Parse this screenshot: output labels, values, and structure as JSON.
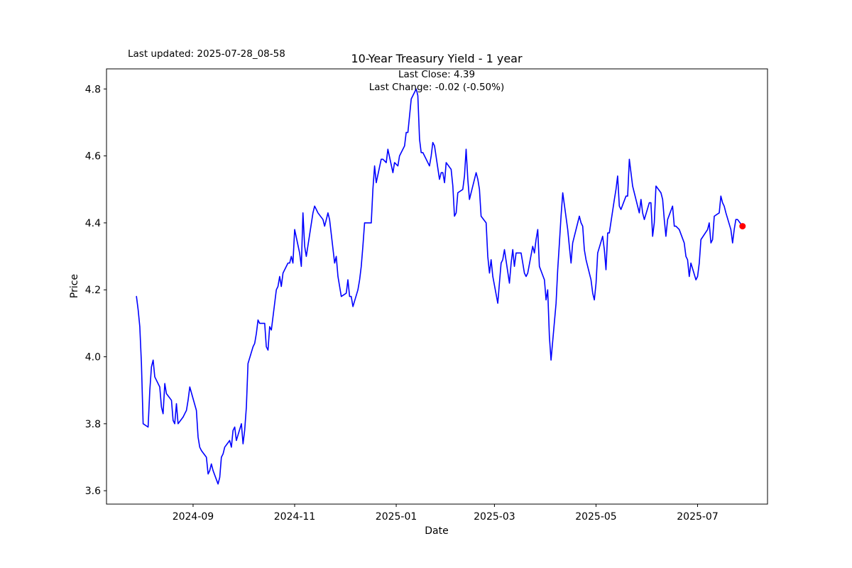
{
  "header": {
    "last_updated": "Last updated: 2025-07-28_08-58",
    "title": "10-Year Treasury Yield - 1 year",
    "subtitle_line1": "Last Close: 4.39",
    "subtitle_line2": "Last Change: -0.02 (-0.50%)"
  },
  "chart_data": {
    "type": "line",
    "title": "10-Year Treasury Yield - 1 year",
    "xlabel": "Date",
    "ylabel": "Price",
    "grid": false,
    "legend": false,
    "last_close": 4.39,
    "last_change_abs": -0.02,
    "last_change_pct": "-0.50%",
    "line_color": "#0000ff",
    "marker_color": "#ff0000",
    "ylim": [
      3.56,
      4.86
    ],
    "xlim": [
      "2024-07-11",
      "2025-08-12"
    ],
    "yticks": [
      {
        "v": 3.6,
        "label": "3.6"
      },
      {
        "v": 3.8,
        "label": "3.8"
      },
      {
        "v": 4.0,
        "label": "4.0"
      },
      {
        "v": 4.2,
        "label": "4.2"
      },
      {
        "v": 4.4,
        "label": "4.4"
      },
      {
        "v": 4.6,
        "label": "4.6"
      },
      {
        "v": 4.8,
        "label": "4.8"
      }
    ],
    "xticks": [
      {
        "date": "2024-09-01",
        "label": "2024-09"
      },
      {
        "date": "2024-11-01",
        "label": "2024-11"
      },
      {
        "date": "2025-01-01",
        "label": "2025-01"
      },
      {
        "date": "2025-03-01",
        "label": "2025-03"
      },
      {
        "date": "2025-05-01",
        "label": "2025-05"
      },
      {
        "date": "2025-07-01",
        "label": "2025-07"
      }
    ],
    "series": [
      {
        "name": "10-Year Treasury Yield",
        "points": [
          [
            "2024-07-29",
            4.18
          ],
          [
            "2024-07-30",
            4.14
          ],
          [
            "2024-07-31",
            4.09
          ],
          [
            "2024-08-01",
            3.98
          ],
          [
            "2024-08-02",
            3.8
          ],
          [
            "2024-08-05",
            3.79
          ],
          [
            "2024-08-06",
            3.9
          ],
          [
            "2024-08-07",
            3.97
          ],
          [
            "2024-08-08",
            3.99
          ],
          [
            "2024-08-09",
            3.94
          ],
          [
            "2024-08-12",
            3.91
          ],
          [
            "2024-08-13",
            3.85
          ],
          [
            "2024-08-14",
            3.83
          ],
          [
            "2024-08-15",
            3.92
          ],
          [
            "2024-08-16",
            3.89
          ],
          [
            "2024-08-19",
            3.87
          ],
          [
            "2024-08-20",
            3.81
          ],
          [
            "2024-08-21",
            3.8
          ],
          [
            "2024-08-22",
            3.86
          ],
          [
            "2024-08-23",
            3.8
          ],
          [
            "2024-08-26",
            3.82
          ],
          [
            "2024-08-27",
            3.83
          ],
          [
            "2024-08-28",
            3.84
          ],
          [
            "2024-08-29",
            3.87
          ],
          [
            "2024-08-30",
            3.91
          ],
          [
            "2024-09-03",
            3.84
          ],
          [
            "2024-09-04",
            3.76
          ],
          [
            "2024-09-05",
            3.73
          ],
          [
            "2024-09-06",
            3.72
          ],
          [
            "2024-09-09",
            3.7
          ],
          [
            "2024-09-10",
            3.65
          ],
          [
            "2024-09-11",
            3.66
          ],
          [
            "2024-09-12",
            3.68
          ],
          [
            "2024-09-13",
            3.66
          ],
          [
            "2024-09-16",
            3.62
          ],
          [
            "2024-09-17",
            3.64
          ],
          [
            "2024-09-18",
            3.7
          ],
          [
            "2024-09-19",
            3.71
          ],
          [
            "2024-09-20",
            3.73
          ],
          [
            "2024-09-23",
            3.75
          ],
          [
            "2024-09-24",
            3.73
          ],
          [
            "2024-09-25",
            3.78
          ],
          [
            "2024-09-26",
            3.79
          ],
          [
            "2024-09-27",
            3.75
          ],
          [
            "2024-09-30",
            3.8
          ],
          [
            "2024-10-01",
            3.74
          ],
          [
            "2024-10-02",
            3.78
          ],
          [
            "2024-10-03",
            3.85
          ],
          [
            "2024-10-04",
            3.98
          ],
          [
            "2024-10-07",
            4.03
          ],
          [
            "2024-10-08",
            4.04
          ],
          [
            "2024-10-09",
            4.07
          ],
          [
            "2024-10-10",
            4.11
          ],
          [
            "2024-10-11",
            4.1
          ],
          [
            "2024-10-14",
            4.1
          ],
          [
            "2024-10-15",
            4.03
          ],
          [
            "2024-10-16",
            4.02
          ],
          [
            "2024-10-17",
            4.09
          ],
          [
            "2024-10-18",
            4.08
          ],
          [
            "2024-10-21",
            4.2
          ],
          [
            "2024-10-22",
            4.21
          ],
          [
            "2024-10-23",
            4.24
          ],
          [
            "2024-10-24",
            4.21
          ],
          [
            "2024-10-25",
            4.25
          ],
          [
            "2024-10-28",
            4.28
          ],
          [
            "2024-10-29",
            4.28
          ],
          [
            "2024-10-30",
            4.3
          ],
          [
            "2024-10-31",
            4.28
          ],
          [
            "2024-11-01",
            4.38
          ],
          [
            "2024-11-04",
            4.31
          ],
          [
            "2024-11-05",
            4.27
          ],
          [
            "2024-11-06",
            4.43
          ],
          [
            "2024-11-07",
            4.33
          ],
          [
            "2024-11-08",
            4.3
          ],
          [
            "2024-11-12",
            4.43
          ],
          [
            "2024-11-13",
            4.45
          ],
          [
            "2024-11-14",
            4.44
          ],
          [
            "2024-11-15",
            4.43
          ],
          [
            "2024-11-18",
            4.41
          ],
          [
            "2024-11-19",
            4.39
          ],
          [
            "2024-11-20",
            4.41
          ],
          [
            "2024-11-21",
            4.43
          ],
          [
            "2024-11-22",
            4.41
          ],
          [
            "2024-11-25",
            4.28
          ],
          [
            "2024-11-26",
            4.3
          ],
          [
            "2024-11-27",
            4.24
          ],
          [
            "2024-11-29",
            4.18
          ],
          [
            "2024-12-02",
            4.19
          ],
          [
            "2024-12-03",
            4.23
          ],
          [
            "2024-12-04",
            4.18
          ],
          [
            "2024-12-05",
            4.18
          ],
          [
            "2024-12-06",
            4.15
          ],
          [
            "2024-12-09",
            4.2
          ],
          [
            "2024-12-10",
            4.23
          ],
          [
            "2024-12-11",
            4.27
          ],
          [
            "2024-12-12",
            4.33
          ],
          [
            "2024-12-13",
            4.4
          ],
          [
            "2024-12-16",
            4.4
          ],
          [
            "2024-12-17",
            4.4
          ],
          [
            "2024-12-18",
            4.5
          ],
          [
            "2024-12-19",
            4.57
          ],
          [
            "2024-12-20",
            4.52
          ],
          [
            "2024-12-23",
            4.59
          ],
          [
            "2024-12-24",
            4.59
          ],
          [
            "2024-12-26",
            4.58
          ],
          [
            "2024-12-27",
            4.62
          ],
          [
            "2024-12-30",
            4.55
          ],
          [
            "2024-12-31",
            4.58
          ],
          [
            "2025-01-02",
            4.57
          ],
          [
            "2025-01-03",
            4.6
          ],
          [
            "2025-01-06",
            4.63
          ],
          [
            "2025-01-07",
            4.67
          ],
          [
            "2025-01-08",
            4.67
          ],
          [
            "2025-01-10",
            4.77
          ],
          [
            "2025-01-13",
            4.8
          ],
          [
            "2025-01-14",
            4.78
          ],
          [
            "2025-01-15",
            4.65
          ],
          [
            "2025-01-16",
            4.61
          ],
          [
            "2025-01-17",
            4.61
          ],
          [
            "2025-01-21",
            4.57
          ],
          [
            "2025-01-22",
            4.6
          ],
          [
            "2025-01-23",
            4.64
          ],
          [
            "2025-01-24",
            4.63
          ],
          [
            "2025-01-27",
            4.53
          ],
          [
            "2025-01-28",
            4.55
          ],
          [
            "2025-01-29",
            4.55
          ],
          [
            "2025-01-30",
            4.52
          ],
          [
            "2025-01-31",
            4.58
          ],
          [
            "2025-02-03",
            4.56
          ],
          [
            "2025-02-04",
            4.51
          ],
          [
            "2025-02-05",
            4.42
          ],
          [
            "2025-02-06",
            4.43
          ],
          [
            "2025-02-07",
            4.49
          ],
          [
            "2025-02-10",
            4.5
          ],
          [
            "2025-02-11",
            4.54
          ],
          [
            "2025-02-12",
            4.62
          ],
          [
            "2025-02-13",
            4.53
          ],
          [
            "2025-02-14",
            4.47
          ],
          [
            "2025-02-18",
            4.55
          ],
          [
            "2025-02-19",
            4.53
          ],
          [
            "2025-02-20",
            4.5
          ],
          [
            "2025-02-21",
            4.42
          ],
          [
            "2025-02-24",
            4.4
          ],
          [
            "2025-02-25",
            4.3
          ],
          [
            "2025-02-26",
            4.25
          ],
          [
            "2025-02-27",
            4.29
          ],
          [
            "2025-02-28",
            4.24
          ],
          [
            "2025-03-03",
            4.16
          ],
          [
            "2025-03-04",
            4.22
          ],
          [
            "2025-03-05",
            4.28
          ],
          [
            "2025-03-06",
            4.29
          ],
          [
            "2025-03-07",
            4.32
          ],
          [
            "2025-03-10",
            4.22
          ],
          [
            "2025-03-11",
            4.28
          ],
          [
            "2025-03-12",
            4.32
          ],
          [
            "2025-03-13",
            4.27
          ],
          [
            "2025-03-14",
            4.31
          ],
          [
            "2025-03-17",
            4.31
          ],
          [
            "2025-03-18",
            4.28
          ],
          [
            "2025-03-19",
            4.25
          ],
          [
            "2025-03-20",
            4.24
          ],
          [
            "2025-03-21",
            4.25
          ],
          [
            "2025-03-24",
            4.33
          ],
          [
            "2025-03-25",
            4.31
          ],
          [
            "2025-03-26",
            4.35
          ],
          [
            "2025-03-27",
            4.38
          ],
          [
            "2025-03-28",
            4.27
          ],
          [
            "2025-03-31",
            4.23
          ],
          [
            "2025-04-01",
            4.17
          ],
          [
            "2025-04-02",
            4.2
          ],
          [
            "2025-04-03",
            4.06
          ],
          [
            "2025-04-04",
            3.99
          ],
          [
            "2025-04-07",
            4.16
          ],
          [
            "2025-04-08",
            4.26
          ],
          [
            "2025-04-09",
            4.34
          ],
          [
            "2025-04-10",
            4.42
          ],
          [
            "2025-04-11",
            4.49
          ],
          [
            "2025-04-14",
            4.38
          ],
          [
            "2025-04-15",
            4.33
          ],
          [
            "2025-04-16",
            4.28
          ],
          [
            "2025-04-17",
            4.34
          ],
          [
            "2025-04-21",
            4.42
          ],
          [
            "2025-04-22",
            4.4
          ],
          [
            "2025-04-23",
            4.39
          ],
          [
            "2025-04-24",
            4.32
          ],
          [
            "2025-04-25",
            4.29
          ],
          [
            "2025-04-28",
            4.23
          ],
          [
            "2025-04-29",
            4.19
          ],
          [
            "2025-04-30",
            4.17
          ],
          [
            "2025-05-01",
            4.22
          ],
          [
            "2025-05-02",
            4.31
          ],
          [
            "2025-05-05",
            4.36
          ],
          [
            "2025-05-06",
            4.32
          ],
          [
            "2025-05-07",
            4.26
          ],
          [
            "2025-05-08",
            4.37
          ],
          [
            "2025-05-09",
            4.37
          ],
          [
            "2025-05-12",
            4.47
          ],
          [
            "2025-05-13",
            4.5
          ],
          [
            "2025-05-14",
            4.54
          ],
          [
            "2025-05-15",
            4.45
          ],
          [
            "2025-05-16",
            4.44
          ],
          [
            "2025-05-19",
            4.48
          ],
          [
            "2025-05-20",
            4.48
          ],
          [
            "2025-05-21",
            4.59
          ],
          [
            "2025-05-22",
            4.55
          ],
          [
            "2025-05-23",
            4.51
          ],
          [
            "2025-05-27",
            4.43
          ],
          [
            "2025-05-28",
            4.47
          ],
          [
            "2025-05-29",
            4.43
          ],
          [
            "2025-05-30",
            4.41
          ],
          [
            "2025-06-02",
            4.46
          ],
          [
            "2025-06-03",
            4.46
          ],
          [
            "2025-06-04",
            4.36
          ],
          [
            "2025-06-05",
            4.4
          ],
          [
            "2025-06-06",
            4.51
          ],
          [
            "2025-06-09",
            4.49
          ],
          [
            "2025-06-10",
            4.47
          ],
          [
            "2025-06-11",
            4.41
          ],
          [
            "2025-06-12",
            4.36
          ],
          [
            "2025-06-13",
            4.41
          ],
          [
            "2025-06-16",
            4.45
          ],
          [
            "2025-06-17",
            4.39
          ],
          [
            "2025-06-18",
            4.39
          ],
          [
            "2025-06-20",
            4.38
          ],
          [
            "2025-06-23",
            4.34
          ],
          [
            "2025-06-24",
            4.3
          ],
          [
            "2025-06-25",
            4.29
          ],
          [
            "2025-06-26",
            4.24
          ],
          [
            "2025-06-27",
            4.28
          ],
          [
            "2025-06-30",
            4.23
          ],
          [
            "2025-07-01",
            4.24
          ],
          [
            "2025-07-02",
            4.28
          ],
          [
            "2025-07-03",
            4.35
          ],
          [
            "2025-07-07",
            4.38
          ],
          [
            "2025-07-08",
            4.4
          ],
          [
            "2025-07-09",
            4.34
          ],
          [
            "2025-07-10",
            4.35
          ],
          [
            "2025-07-11",
            4.42
          ],
          [
            "2025-07-14",
            4.43
          ],
          [
            "2025-07-15",
            4.48
          ],
          [
            "2025-07-16",
            4.46
          ],
          [
            "2025-07-17",
            4.45
          ],
          [
            "2025-07-18",
            4.43
          ],
          [
            "2025-07-21",
            4.38
          ],
          [
            "2025-07-22",
            4.34
          ],
          [
            "2025-07-23",
            4.38
          ],
          [
            "2025-07-24",
            4.41
          ],
          [
            "2025-07-25",
            4.41
          ],
          [
            "2025-07-28",
            4.39
          ]
        ]
      }
    ]
  }
}
